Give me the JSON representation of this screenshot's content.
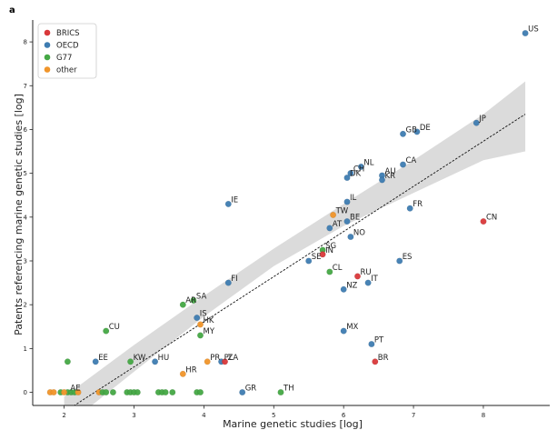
{
  "panel_label": "a",
  "chart_data": {
    "type": "scatter",
    "xlabel": "Marine genetic studies [log]",
    "ylabel": "Patents referencing marine genetic studies [log]",
    "xlim": [
      1.55,
      8.95
    ],
    "ylim": [
      -0.3,
      8.5
    ],
    "xticks": [
      2,
      3,
      4,
      5,
      6,
      7,
      8
    ],
    "yticks": [
      0,
      1,
      2,
      3,
      4,
      5,
      6,
      7,
      8
    ],
    "grid": false,
    "legend_position": "top-left",
    "groups": [
      {
        "name": "BRICS",
        "color": "#d9383a"
      },
      {
        "name": "OECD",
        "color": "#3e7cb1"
      },
      {
        "name": "G77",
        "color": "#45a845"
      },
      {
        "name": "other",
        "color": "#f0952a"
      }
    ],
    "regression": {
      "line": [
        [
          2.0,
          -0.45
        ],
        [
          8.6,
          6.35
        ]
      ],
      "band_upper": [
        [
          2.0,
          -0.1
        ],
        [
          3.0,
          1.08
        ],
        [
          4.0,
          2.2
        ],
        [
          5.0,
          3.28
        ],
        [
          6.0,
          4.3
        ],
        [
          7.0,
          5.3
        ],
        [
          8.0,
          6.35
        ],
        [
          8.6,
          7.1
        ]
      ],
      "band_lower": [
        [
          2.0,
          -0.8
        ],
        [
          3.0,
          0.47
        ],
        [
          4.0,
          1.73
        ],
        [
          5.0,
          2.88
        ],
        [
          6.0,
          3.8
        ],
        [
          7.0,
          4.55
        ],
        [
          8.0,
          5.3
        ],
        [
          8.6,
          5.5
        ]
      ]
    },
    "points": [
      {
        "label": "US",
        "group": "OECD",
        "x": 8.6,
        "y": 8.2
      },
      {
        "label": "JP",
        "group": "OECD",
        "x": 7.9,
        "y": 6.15
      },
      {
        "label": "DE",
        "group": "OECD",
        "x": 7.05,
        "y": 5.95
      },
      {
        "label": "GB",
        "group": "OECD",
        "x": 6.85,
        "y": 5.9
      },
      {
        "label": "CA",
        "group": "OECD",
        "x": 6.85,
        "y": 5.2
      },
      {
        "label": "AU",
        "group": "OECD",
        "x": 6.55,
        "y": 4.95
      },
      {
        "label": "KR",
        "group": "OECD",
        "x": 6.55,
        "y": 4.85
      },
      {
        "label": "NL",
        "group": "OECD",
        "x": 6.25,
        "y": 5.15
      },
      {
        "label": "CH",
        "group": "OECD",
        "x": 6.1,
        "y": 5.0
      },
      {
        "label": "DK",
        "group": "OECD",
        "x": 6.05,
        "y": 4.9
      },
      {
        "label": "IE",
        "group": "OECD",
        "x": 4.35,
        "y": 4.3
      },
      {
        "label": "IL",
        "group": "OECD",
        "x": 6.05,
        "y": 4.35
      },
      {
        "label": "TW",
        "group": "other",
        "x": 5.85,
        "y": 4.05
      },
      {
        "label": "FR",
        "group": "OECD",
        "x": 6.95,
        "y": 4.2
      },
      {
        "label": "CN",
        "group": "BRICS",
        "x": 8.0,
        "y": 3.9
      },
      {
        "label": "BE",
        "group": "OECD",
        "x": 6.05,
        "y": 3.9
      },
      {
        "label": "AT",
        "group": "OECD",
        "x": 5.8,
        "y": 3.75
      },
      {
        "label": "NO",
        "group": "OECD",
        "x": 6.1,
        "y": 3.55
      },
      {
        "label": "SG",
        "group": "G77",
        "x": 5.7,
        "y": 3.25
      },
      {
        "label": "IN",
        "group": "BRICS",
        "x": 5.7,
        "y": 3.15
      },
      {
        "label": "SE",
        "group": "OECD",
        "x": 5.5,
        "y": 3.0
      },
      {
        "label": "ES",
        "group": "OECD",
        "x": 6.8,
        "y": 3.0
      },
      {
        "label": "CL",
        "group": "G77",
        "x": 5.8,
        "y": 2.75
      },
      {
        "label": "RU",
        "group": "BRICS",
        "x": 6.2,
        "y": 2.65
      },
      {
        "label": "FI",
        "group": "OECD",
        "x": 4.35,
        "y": 2.5
      },
      {
        "label": "IT",
        "group": "OECD",
        "x": 6.35,
        "y": 2.5
      },
      {
        "label": "NZ",
        "group": "OECD",
        "x": 6.0,
        "y": 2.35
      },
      {
        "label": "SA",
        "group": "G77",
        "x": 3.85,
        "y": 2.1
      },
      {
        "label": "AR",
        "group": "G77",
        "x": 3.7,
        "y": 2.0
      },
      {
        "label": "IS",
        "group": "OECD",
        "x": 3.9,
        "y": 1.7
      },
      {
        "label": "HK",
        "group": "other",
        "x": 3.95,
        "y": 1.55
      },
      {
        "label": "CU",
        "group": "G77",
        "x": 2.6,
        "y": 1.4
      },
      {
        "label": "MX",
        "group": "OECD",
        "x": 6.0,
        "y": 1.4
      },
      {
        "label": "MY",
        "group": "G77",
        "x": 3.95,
        "y": 1.3
      },
      {
        "label": "PT",
        "group": "OECD",
        "x": 6.4,
        "y": 1.1
      },
      {
        "label": "EE",
        "group": "OECD",
        "x": 2.45,
        "y": 0.7
      },
      {
        "label": "KW",
        "group": "G77",
        "x": 2.95,
        "y": 0.7
      },
      {
        "label": "HU",
        "group": "OECD",
        "x": 3.3,
        "y": 0.7
      },
      {
        "label": "PR",
        "group": "other",
        "x": 4.05,
        "y": 0.7
      },
      {
        "label": "PL",
        "group": "OECD",
        "x": 4.25,
        "y": 0.7
      },
      {
        "label": "ZA",
        "group": "BRICS",
        "x": 4.3,
        "y": 0.7
      },
      {
        "label": "BR",
        "group": "BRICS",
        "x": 6.45,
        "y": 0.7
      },
      {
        "label": "HR",
        "group": "other",
        "x": 3.7,
        "y": 0.42
      },
      {
        "label": "AE",
        "group": "G77",
        "x": 2.05,
        "y": 0.0
      },
      {
        "label": "GR",
        "group": "OECD",
        "x": 4.55,
        "y": 0.0
      },
      {
        "label": "TH",
        "group": "G77",
        "x": 5.1,
        "y": 0.0
      },
      {
        "label": "",
        "group": "G77",
        "x": 2.05,
        "y": 0.7
      },
      {
        "label": "",
        "group": "other",
        "x": 1.8,
        "y": 0.0
      },
      {
        "label": "",
        "group": "other",
        "x": 1.85,
        "y": 0.0
      },
      {
        "label": "",
        "group": "G77",
        "x": 1.95,
        "y": 0.0
      },
      {
        "label": "",
        "group": "other",
        "x": 2.0,
        "y": 0.0
      },
      {
        "label": "",
        "group": "G77",
        "x": 2.1,
        "y": 0.0
      },
      {
        "label": "",
        "group": "G77",
        "x": 2.15,
        "y": 0.0
      },
      {
        "label": "",
        "group": "other",
        "x": 2.2,
        "y": 0.0
      },
      {
        "label": "",
        "group": "other",
        "x": 2.5,
        "y": 0.0
      },
      {
        "label": "",
        "group": "G77",
        "x": 2.55,
        "y": 0.0
      },
      {
        "label": "",
        "group": "G77",
        "x": 2.6,
        "y": 0.0
      },
      {
        "label": "",
        "group": "G77",
        "x": 2.7,
        "y": 0.0
      },
      {
        "label": "",
        "group": "G77",
        "x": 2.9,
        "y": 0.0
      },
      {
        "label": "",
        "group": "G77",
        "x": 2.95,
        "y": 0.0
      },
      {
        "label": "",
        "group": "G77",
        "x": 3.0,
        "y": 0.0
      },
      {
        "label": "",
        "group": "G77",
        "x": 3.05,
        "y": 0.0
      },
      {
        "label": "",
        "group": "G77",
        "x": 3.35,
        "y": 0.0
      },
      {
        "label": "",
        "group": "G77",
        "x": 3.4,
        "y": 0.0
      },
      {
        "label": "",
        "group": "G77",
        "x": 3.45,
        "y": 0.0
      },
      {
        "label": "",
        "group": "G77",
        "x": 3.55,
        "y": 0.0
      },
      {
        "label": "",
        "group": "G77",
        "x": 3.9,
        "y": 0.0
      },
      {
        "label": "",
        "group": "G77",
        "x": 3.95,
        "y": 0.0
      }
    ]
  }
}
